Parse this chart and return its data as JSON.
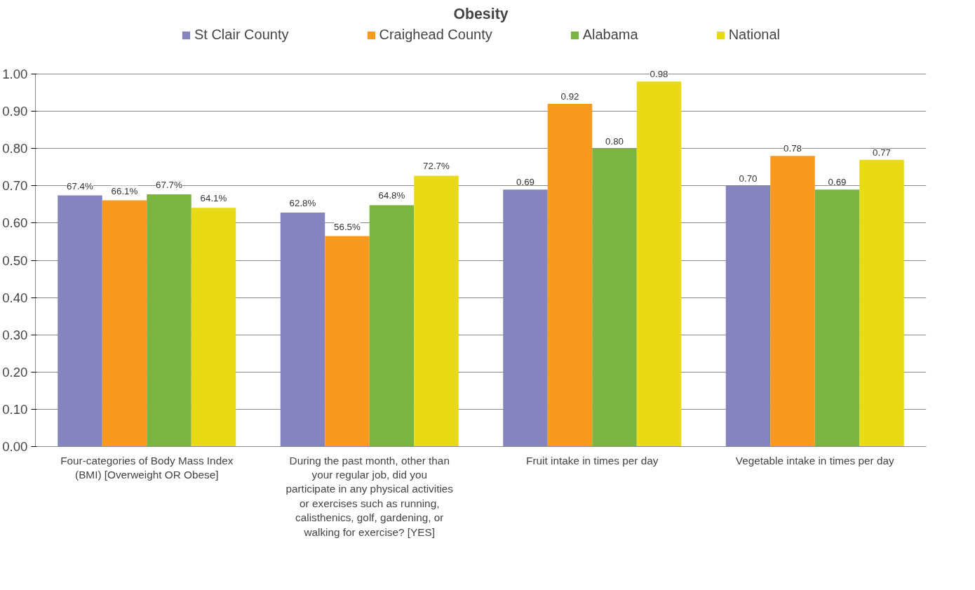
{
  "chart_data": {
    "type": "bar",
    "title": "Obesity",
    "categories": [
      "Four-categories of Body Mass Index\n(BMI) [Overweight OR Obese]",
      "During the past month, other than\nyour regular job, did you\nparticipate in any physical activities\nor exercises such as running,\ncalisthenics, golf, gardening, or\nwalking for exercise? [YES]",
      "Fruit intake in times per day",
      "Vegetable intake in times per day"
    ],
    "series": [
      {
        "name": "St Clair County",
        "color": "#8584bf",
        "values": [
          0.674,
          0.628,
          0.69,
          0.7
        ],
        "value_labels": [
          "67.4%",
          "62.8%",
          "0.69",
          "0.70"
        ]
      },
      {
        "name": "Craighead County",
        "color": "#f79a1e",
        "values": [
          0.661,
          0.565,
          0.92,
          0.78
        ],
        "value_labels": [
          "66.1%",
          "56.5%",
          "0.92",
          "0.78"
        ]
      },
      {
        "name": "Alabama",
        "color": "#7ab541",
        "values": [
          0.677,
          0.648,
          0.8,
          0.69
        ],
        "value_labels": [
          "67.7%",
          "64.8%",
          "0.80",
          "0.69"
        ]
      },
      {
        "name": "National",
        "color": "#e8da15",
        "values": [
          0.641,
          0.727,
          0.98,
          0.77
        ],
        "value_labels": [
          "64.1%",
          "72.7%",
          "0.98",
          "0.77"
        ]
      }
    ],
    "ylim": [
      0,
      1.0
    ],
    "yticks": [
      {
        "value": 0,
        "label": "0.00"
      },
      {
        "value": 0.1,
        "label": "0.10"
      },
      {
        "value": 0.2,
        "label": "0.20"
      },
      {
        "value": 0.3,
        "label": "0.30"
      },
      {
        "value": 0.4,
        "label": "0.40"
      },
      {
        "value": 0.5,
        "label": "0.50"
      },
      {
        "value": 0.6,
        "label": "0.60"
      },
      {
        "value": 0.7,
        "label": "0.70"
      },
      {
        "value": 0.8,
        "label": "0.80"
      },
      {
        "value": 0.9,
        "label": "0.90"
      },
      {
        "value": 1.0,
        "label": "1.00"
      }
    ],
    "grid": "y",
    "legend": "top"
  }
}
